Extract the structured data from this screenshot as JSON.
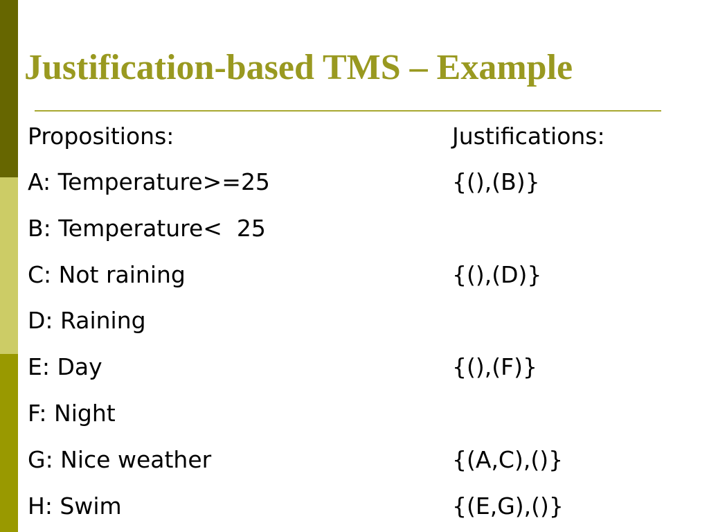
{
  "title": "Justification-based TMS – Example",
  "headers": [
    "Propositions:",
    "Justifications:"
  ],
  "rows": [
    {
      "proposition": "A: Temperature>=25",
      "justification": "{(),(B)}"
    },
    {
      "proposition": "B: Temperature<  25"
    },
    {
      "proposition": "C: Not raining",
      "justification": "{(),(D)}"
    },
    {
      "proposition": "D: Raining"
    },
    {
      "proposition": "E: Day",
      "justification": "{(),(F)}"
    },
    {
      "proposition": "F: Night"
    },
    {
      "proposition": "G: Nice weather",
      "justification": "{(A,C),()}"
    },
    {
      "proposition": "H: Swim",
      "justification": "{(E,G),()}"
    }
  ]
}
